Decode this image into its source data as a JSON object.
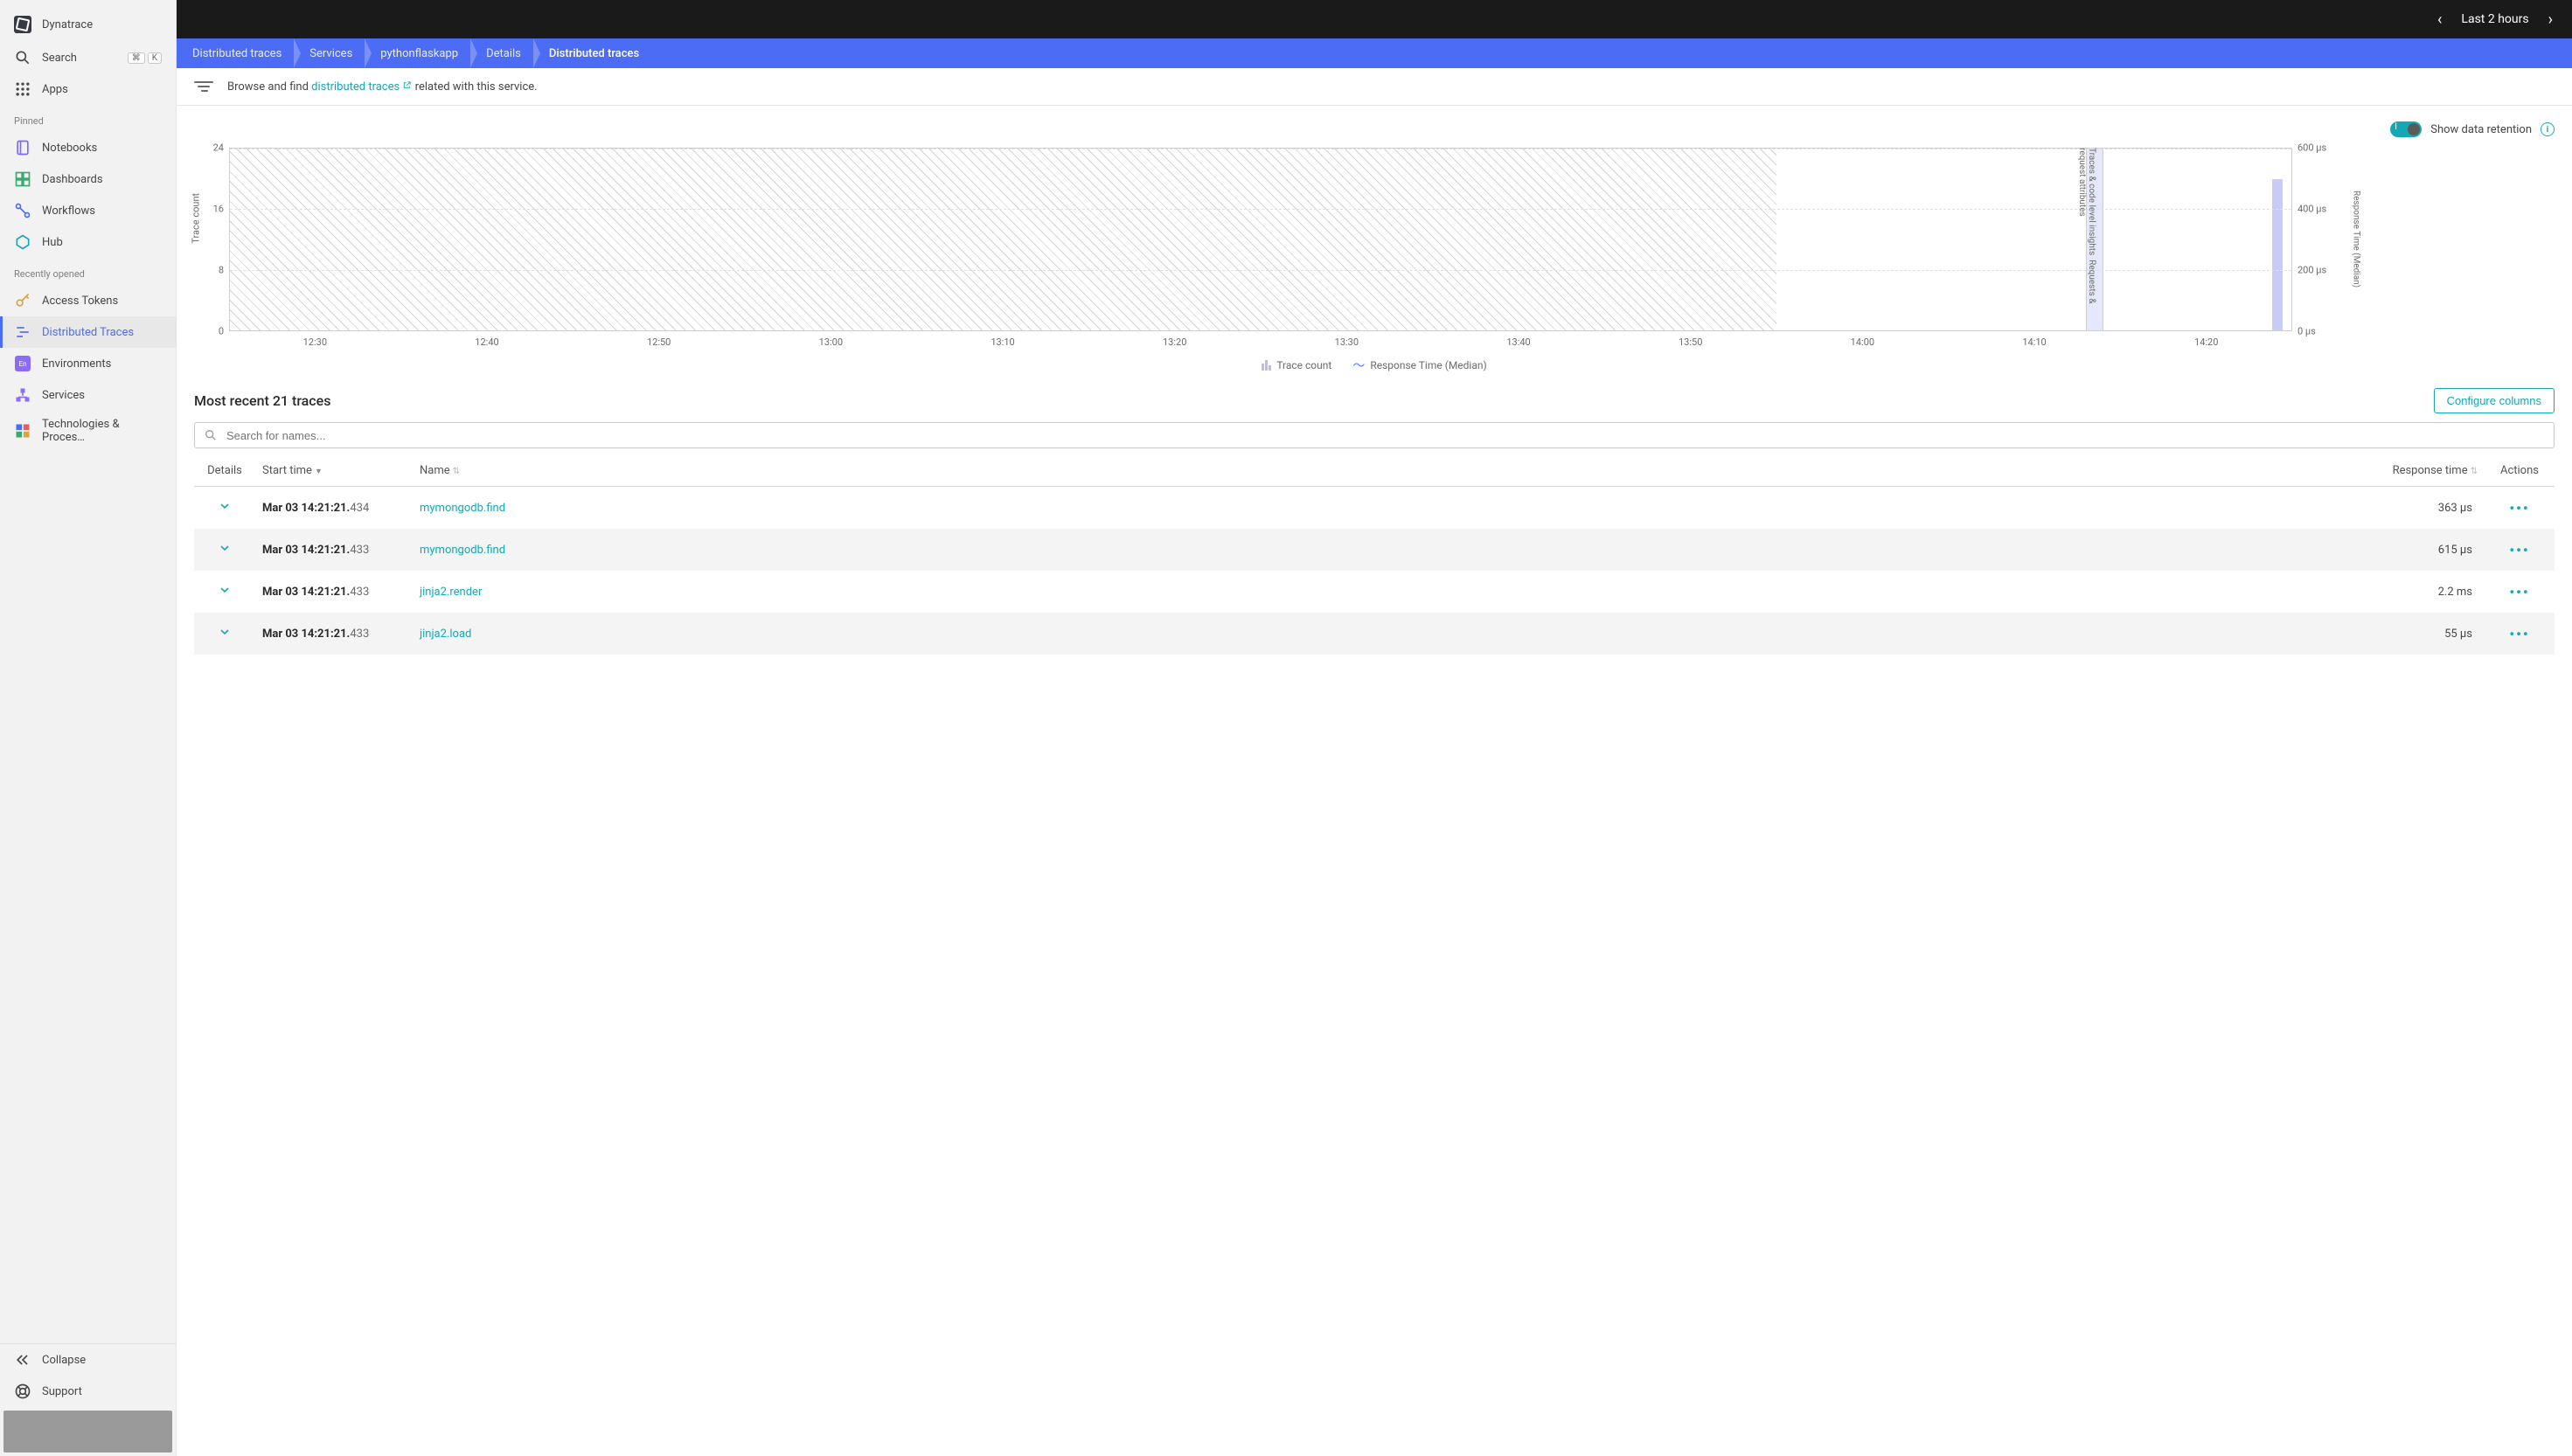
{
  "brand": "Dynatrace",
  "sidebar": {
    "search": "Search",
    "search_kbd": [
      "⌘",
      "K"
    ],
    "apps": "Apps",
    "pinned_label": "Pinned",
    "pinned": [
      "Notebooks",
      "Dashboards",
      "Workflows",
      "Hub"
    ],
    "recent_label": "Recently opened",
    "recent": [
      "Access Tokens",
      "Distributed Traces",
      "Environments",
      "Services",
      "Technologies & Proces…"
    ],
    "active_index": 1,
    "collapse": "Collapse",
    "support": "Support"
  },
  "topbar": {
    "time_range": "Last 2 hours"
  },
  "breadcrumbs": [
    "Distributed traces",
    "Services",
    "pythonflaskapp",
    "Details",
    "Distributed traces"
  ],
  "info_bar": {
    "prefix": "Browse and find ",
    "link": "distributed traces",
    "suffix": " related with this service."
  },
  "toggle": {
    "label": "Show data retention",
    "on": true
  },
  "chart": {
    "y_left_label": "Trace count",
    "y_left_ticks": [
      {
        "v": "24",
        "p": 0
      },
      {
        "v": "16",
        "p": 33.3
      },
      {
        "v": "8",
        "p": 66.6
      },
      {
        "v": "0",
        "p": 100
      }
    ],
    "mid_label_1": "Traces & code level insights",
    "mid_label_2": "Requests & request attributes",
    "y_right_label": "Response Time (Median)",
    "y_right_ticks": [
      {
        "v": "600 µs",
        "p": 0
      },
      {
        "v": "400 µs",
        "p": 33.3
      },
      {
        "v": "200 µs",
        "p": 66.6
      },
      {
        "v": "0 µs",
        "p": 100
      }
    ],
    "x_ticks": [
      "12:30",
      "12:40",
      "12:50",
      "13:00",
      "13:10",
      "13:20",
      "13:30",
      "13:40",
      "13:50",
      "14:00",
      "14:10",
      "14:20"
    ],
    "legend": {
      "a": "Trace count",
      "b": "Response Time (Median)"
    },
    "colors": {
      "hatch": "#d2d2d2",
      "bar": "#b8bfe8",
      "line": "#5b7fff",
      "grid": "#e0e0e0"
    }
  },
  "traces_header": "Most recent 21 traces",
  "configure_btn": "Configure columns",
  "search_placeholder": "Search for names...",
  "columns": {
    "details": "Details",
    "start": "Start time",
    "name": "Name",
    "resp": "Response time",
    "actions": "Actions"
  },
  "rows": [
    {
      "ts_bold": "Mar 03 14:21:21.",
      "ts_ms": "434",
      "name": "mymongodb.find",
      "resp": "363 µs"
    },
    {
      "ts_bold": "Mar 03 14:21:21.",
      "ts_ms": "433",
      "name": "mymongodb.find",
      "resp": "615 µs"
    },
    {
      "ts_bold": "Mar 03 14:21:21.",
      "ts_ms": "433",
      "name": "jinja2.render",
      "resp": "2.2 ms"
    },
    {
      "ts_bold": "Mar 03 14:21:21.",
      "ts_ms": "433",
      "name": "jinja2.load",
      "resp": "55 µs"
    }
  ]
}
